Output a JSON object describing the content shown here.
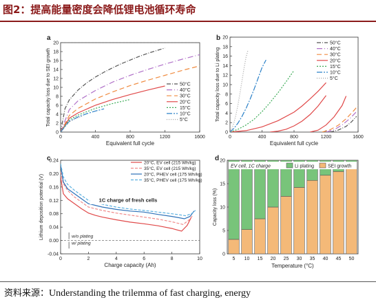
{
  "title": "图2：提高能量密度会降低锂电池循环寿命",
  "source": {
    "label": "资料来源：",
    "text": "Understanding the trilemma of fast charging, energy"
  },
  "chart_data": [
    {
      "panel": "a",
      "type": "line",
      "xlabel": "Equivalent full cycle",
      "ylabel": "Total capacity loss due to SEI growth",
      "xlim": [
        0,
        1600
      ],
      "ylim": [
        0,
        20
      ],
      "xticks": [
        0,
        400,
        800,
        1200,
        1600
      ],
      "yticks": [
        0,
        2,
        4,
        6,
        8,
        10,
        12,
        14,
        16,
        18,
        20
      ],
      "legend_position": "bottom-right",
      "reference_line": {
        "y": 20,
        "style": "dashed"
      },
      "series": [
        {
          "name": "50°C",
          "color": "#555555",
          "dash": "6 2 1 2",
          "x": [
            0,
            50,
            100,
            200,
            300,
            400,
            500,
            600,
            700,
            800,
            900,
            1000,
            1100,
            1200
          ],
          "y": [
            0,
            5.2,
            7.2,
            9.4,
            11.0,
            12.3,
            13.4,
            14.4,
            15.3,
            16.1,
            16.9,
            17.6,
            18.2,
            18.8
          ]
        },
        {
          "name": "40°C",
          "color": "#b070c8",
          "dash": "8 3 1 3",
          "x": [
            0,
            100,
            200,
            400,
            600,
            800,
            1000,
            1200,
            1400,
            1600
          ],
          "y": [
            0,
            5.0,
            7.0,
            9.3,
            11.2,
            12.7,
            14.0,
            15.2,
            16.3,
            17.3
          ]
        },
        {
          "name": "30°C",
          "color": "#f08a3e",
          "dash": "7 4",
          "x": [
            0,
            100,
            200,
            400,
            600,
            800,
            1000,
            1200,
            1400,
            1600
          ],
          "y": [
            0,
            3.7,
            5.3,
            7.4,
            9.0,
            10.4,
            11.6,
            12.7,
            13.8,
            14.8
          ]
        },
        {
          "name": "20°C",
          "color": "#e04848",
          "dash": "",
          "x": [
            0,
            100,
            200,
            400,
            600,
            800,
            1000,
            1200
          ],
          "y": [
            0,
            3.1,
            4.3,
            6.0,
            7.3,
            8.4,
            9.4,
            10.3
          ]
        },
        {
          "name": "15°C",
          "color": "#3aaa55",
          "dash": "2 2",
          "x": [
            0,
            100,
            200,
            400,
            600,
            800
          ],
          "y": [
            0,
            2.7,
            3.8,
            5.3,
            6.4,
            7.3
          ]
        },
        {
          "name": "10°C",
          "color": "#2a80c8",
          "dash": "8 2 2 2",
          "x": [
            0,
            100,
            200,
            300,
            400,
            500
          ],
          "y": [
            0,
            2.4,
            3.4,
            4.1,
            4.7,
            5.2
          ]
        },
        {
          "name": "5°C",
          "color": "#a0a0a0",
          "dash": "1 2",
          "x": [
            0,
            50,
            100,
            150,
            200,
            250
          ],
          "y": [
            0,
            1.6,
            2.3,
            2.8,
            3.2,
            3.6
          ]
        }
      ]
    },
    {
      "panel": "b",
      "type": "line",
      "xlabel": "Equivalent full cycle",
      "ylabel": "Total capacity loss due to Li plating",
      "xlim": [
        0,
        1600
      ],
      "ylim": [
        0,
        20
      ],
      "xticks": [
        0,
        400,
        800,
        1200,
        1600
      ],
      "yticks": [
        0,
        2,
        4,
        6,
        8,
        10,
        12,
        14,
        16,
        18,
        20
      ],
      "legend_position": "top-right",
      "series": [
        {
          "name": "50°C",
          "color": "#555555",
          "dash": "6 2 1 2",
          "x": [
            1250,
            1350,
            1450,
            1520,
            1580
          ],
          "y": [
            0,
            0.4,
            1.2,
            2.2,
            3.3
          ]
        },
        {
          "name": "40°C",
          "color": "#b070c8",
          "dash": "8 3 1 3",
          "x": [
            1200,
            1300,
            1400,
            1500,
            1580
          ],
          "y": [
            0,
            0.5,
            1.5,
            2.9,
            4.3
          ]
        },
        {
          "name": "30°C",
          "color": "#f08a3e",
          "dash": "7 4",
          "x": [
            1150,
            1250,
            1350,
            1450,
            1550,
            1600
          ],
          "y": [
            0,
            0.5,
            1.4,
            2.8,
            4.6,
            5.6
          ]
        },
        {
          "name": "20°C",
          "color": "#e04848",
          "dash": "",
          "x": [
            0,
            200,
            400,
            600,
            800,
            900,
            1000,
            1100,
            1200
          ],
          "y": [
            0,
            0.3,
            1.1,
            2.4,
            4.2,
            5.5,
            7.0,
            8.6,
            10.4
          ]
        },
        {
          "name": "15°C",
          "color": "#3aaa55",
          "dash": "2 2",
          "x": [
            0,
            100,
            200,
            300,
            400,
            500,
            600,
            700,
            800
          ],
          "y": [
            0,
            0.6,
            1.5,
            2.7,
            4.3,
            6.2,
            8.3,
            10.6,
            13.0
          ]
        },
        {
          "name": "10°C",
          "color": "#2a80c8",
          "dash": "8 2 2 2",
          "x": [
            0,
            50,
            100,
            150,
            200,
            250,
            300,
            350,
            400,
            450
          ],
          "y": [
            0,
            0.8,
            1.9,
            3.3,
            5.0,
            6.9,
            9.0,
            11.3,
            13.6,
            15.2
          ]
        },
        {
          "name": "5°C",
          "color": "#a0a0a0",
          "dash": "1 2",
          "x": [
            0,
            25,
            50,
            75,
            100,
            125,
            150,
            175,
            200,
            225
          ],
          "y": [
            0,
            0.8,
            2.0,
            3.7,
            5.8,
            8.2,
            10.8,
            13.4,
            15.8,
            17.3
          ]
        },
        {
          "name": "",
          "color": "#e04848",
          "dash": "",
          "x": [
            500,
            600,
            700,
            800,
            900,
            1000,
            1100,
            1200
          ],
          "y": [
            0,
            0.2,
            0.6,
            1.3,
            2.3,
            3.7,
            5.5,
            7.7
          ]
        },
        {
          "name": "",
          "color": "#e04848",
          "dash": "",
          "x": [
            1000,
            1100,
            1200,
            1300,
            1400,
            1450
          ],
          "y": [
            0,
            0.4,
            1.5,
            3.2,
            5.6,
            7.6
          ]
        }
      ]
    },
    {
      "panel": "c",
      "type": "line",
      "xlabel": "Charge capacity (Ah)",
      "ylabel": "Lithium deposition potential (V)",
      "xlim": [
        0,
        10
      ],
      "ylim": [
        -0.04,
        0.24
      ],
      "xticks": [
        0,
        2,
        4,
        6,
        8,
        10
      ],
      "yticks": [
        -0.04,
        0.0,
        0.04,
        0.08,
        0.12,
        0.16,
        0.2,
        0.24
      ],
      "legend_position": "top-right",
      "reference_line": {
        "y": 0,
        "style": "dashed"
      },
      "annotations": {
        "box_text": "1C charge of fresh cells",
        "above": "w/o plating",
        "below": "w/ plating"
      },
      "series": [
        {
          "name": "20°C, EV cell (215 Wh/kg)",
          "color": "#e04848",
          "dash": "",
          "x": [
            0,
            0.2,
            0.5,
            1,
            1.5,
            2,
            2.5,
            3,
            4,
            5,
            6,
            7,
            8,
            8.7,
            9.1,
            9.4
          ],
          "y": [
            0.19,
            0.14,
            0.125,
            0.11,
            0.095,
            0.082,
            0.075,
            0.07,
            0.062,
            0.055,
            0.05,
            0.044,
            0.036,
            0.028,
            0.045,
            0.07
          ]
        },
        {
          "name": "35°C, EV cell (215 Wh/kg)",
          "color": "#f08a8a",
          "dash": "4 2",
          "x": [
            0,
            0.2,
            0.5,
            1,
            1.5,
            2,
            3,
            4,
            5,
            6,
            7,
            8,
            8.8,
            9.2,
            9.5
          ],
          "y": [
            0.205,
            0.17,
            0.15,
            0.13,
            0.115,
            0.1,
            0.09,
            0.082,
            0.076,
            0.07,
            0.064,
            0.056,
            0.048,
            0.06,
            0.075
          ]
        },
        {
          "name": "20°C, PHEV cell (175 Wh/kg)",
          "color": "#2a6fb8",
          "dash": "",
          "x": [
            0,
            0.2,
            0.5,
            1,
            1.5,
            2,
            3,
            4,
            5,
            6,
            7,
            8,
            8.9,
            9.3,
            9.6
          ],
          "y": [
            0.225,
            0.175,
            0.155,
            0.14,
            0.125,
            0.11,
            0.1,
            0.093,
            0.088,
            0.085,
            0.078,
            0.072,
            0.065,
            0.072,
            0.088
          ]
        },
        {
          "name": "35°C, PHEV cell (175 Wh/kg)",
          "color": "#5ab0e0",
          "dash": "4 2",
          "x": [
            0,
            0.2,
            0.5,
            1,
            1.5,
            2,
            3,
            4,
            5,
            6,
            7,
            8,
            9,
            9.4,
            9.7
          ],
          "y": [
            0.23,
            0.19,
            0.168,
            0.15,
            0.135,
            0.12,
            0.108,
            0.1,
            0.094,
            0.09,
            0.085,
            0.08,
            0.074,
            0.08,
            0.09
          ]
        }
      ]
    },
    {
      "panel": "d",
      "type": "bar",
      "stacked": true,
      "xlabel": "Temperature (°C)",
      "ylabel": "Capacity loss (%)",
      "ylim": [
        0,
        20
      ],
      "yticks": [
        0,
        5,
        10,
        15,
        20
      ],
      "legend_text": "EV cell, 1C charge",
      "categories": [
        "5",
        "10",
        "15",
        "20",
        "25",
        "30",
        "35",
        "40",
        "45",
        "50"
      ],
      "series": [
        {
          "name": "SEI growth",
          "color": "#f4b978",
          "values": [
            3.1,
            5.2,
            7.5,
            10.0,
            12.3,
            14.2,
            15.7,
            16.8,
            17.6,
            18.3
          ]
        },
        {
          "name": "Li plating",
          "color": "#78c47a",
          "values": [
            16.9,
            14.8,
            12.5,
            10.0,
            7.7,
            5.8,
            4.3,
            3.2,
            2.4,
            1.7
          ]
        }
      ]
    }
  ]
}
